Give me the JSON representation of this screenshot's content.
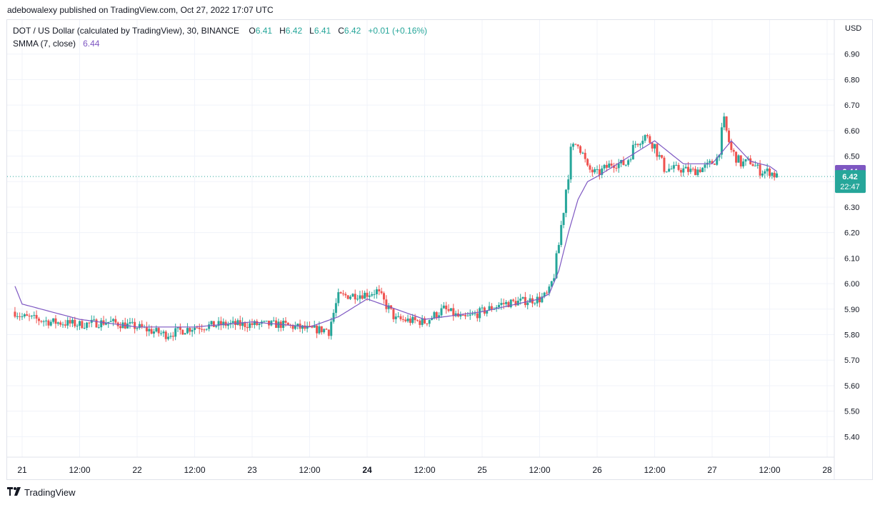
{
  "caption": "adebowalexy published on TradingView.com, Oct 27, 2022 17:07 UTC",
  "legend": {
    "symbol": "DOT / US Dollar (calculated by TradingView), 30, BINANCE",
    "o_label": "O",
    "o_val": "6.41",
    "h_label": "H",
    "h_val": "6.42",
    "l_label": "L",
    "l_val": "6.41",
    "c_label": "C",
    "c_val": "6.42",
    "change": "+0.01 (+0.16%)",
    "indicator": "SMMA (7, close)",
    "indicator_val": "6.44"
  },
  "currency": "USD",
  "footer": {
    "brand": "TradingView",
    "logo_icon": "tradingview-logo-icon"
  },
  "colors": {
    "up": "#26a69a",
    "down": "#ef5350",
    "smma": "#7e57c2",
    "grid": "#f0f3fa",
    "axis_text": "#131722"
  },
  "price_badges": {
    "smma_value": "6.44",
    "last_price": "6.42",
    "countdown": "22:47"
  },
  "chart_data": {
    "type": "candlestick",
    "interval": "30",
    "ylim": [
      5.35,
      7.0
    ],
    "y_ticks": [
      5.4,
      5.5,
      5.6,
      5.7,
      5.8,
      5.9,
      6.0,
      6.1,
      6.2,
      6.3,
      6.4,
      6.5,
      6.6,
      6.7,
      6.8,
      6.9
    ],
    "x_tick_labels": [
      "21",
      "12:00",
      "22",
      "12:00",
      "23",
      "12:00",
      "24",
      "12:00",
      "25",
      "12:00",
      "26",
      "12:00",
      "27",
      "12:00",
      "28"
    ],
    "x_tick_hours": [
      0,
      12,
      24,
      36,
      48,
      60,
      72,
      84,
      96,
      108,
      120,
      132,
      144,
      156,
      168
    ],
    "bold_tick": "24",
    "last_price_line": 6.42,
    "price_path_hours": [
      -1.5,
      0,
      6,
      12,
      18,
      24,
      30,
      36,
      42,
      48,
      54,
      60,
      64,
      66,
      72,
      74,
      78,
      84,
      88,
      92,
      96,
      100,
      104,
      108,
      110,
      111.5,
      113,
      114.5,
      116,
      118,
      120,
      123,
      126,
      128,
      130,
      132,
      134,
      137,
      140,
      143,
      145,
      146.5,
      148,
      150,
      152,
      154,
      156,
      157.5
    ],
    "price_path_values": [
      5.89,
      5.87,
      5.85,
      5.84,
      5.85,
      5.83,
      5.8,
      5.83,
      5.84,
      5.84,
      5.84,
      5.82,
      5.82,
      5.95,
      5.96,
      5.97,
      5.86,
      5.85,
      5.9,
      5.86,
      5.89,
      5.92,
      5.93,
      5.94,
      5.96,
      6.08,
      6.3,
      6.52,
      6.56,
      6.45,
      6.43,
      6.47,
      6.47,
      6.55,
      6.58,
      6.54,
      6.45,
      6.45,
      6.44,
      6.46,
      6.49,
      6.63,
      6.52,
      6.47,
      6.48,
      6.44,
      6.44,
      6.42
    ],
    "smma_hours": [
      -1.5,
      0,
      12,
      24,
      36,
      48,
      60,
      66,
      72,
      78,
      84,
      96,
      108,
      110,
      112,
      114,
      116,
      118,
      120,
      126,
      132,
      138,
      144,
      148,
      152,
      156,
      157.5
    ],
    "smma_values": [
      5.99,
      5.92,
      5.86,
      5.83,
      5.83,
      5.85,
      5.83,
      5.87,
      5.94,
      5.9,
      5.86,
      5.89,
      5.94,
      5.96,
      6.05,
      6.2,
      6.33,
      6.4,
      6.42,
      6.49,
      6.56,
      6.47,
      6.47,
      6.56,
      6.48,
      6.46,
      6.44
    ]
  }
}
